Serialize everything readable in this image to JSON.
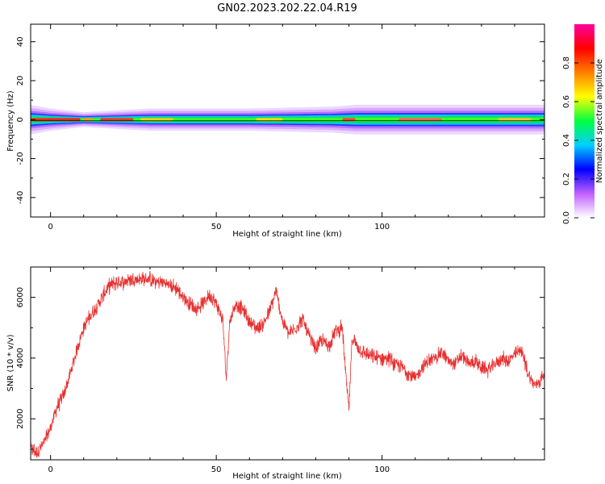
{
  "figure": {
    "title": "GN02.2023.202.22.04.R19"
  },
  "chart_data": [
    {
      "type": "heatmap",
      "xlabel": "Height of straight line (km)",
      "ylabel": "Frequency (Hz)",
      "xlim": [
        -6,
        149
      ],
      "ylim": [
        -50,
        49
      ],
      "xticks": [
        0,
        50,
        100
      ],
      "yticks": [
        -40,
        -20,
        0,
        20,
        40
      ],
      "ytick_labels": [
        "-40",
        "-20",
        "0",
        "20",
        "40"
      ],
      "grid": false,
      "description_band": {
        "center_frequency": 0,
        "half_width_by_height": [
          [
            -6,
            4
          ],
          [
            0,
            3
          ],
          [
            10,
            2
          ],
          [
            30,
            3
          ],
          [
            60,
            3
          ],
          [
            85,
            3.5
          ],
          [
            92,
            4
          ],
          [
            120,
            4
          ],
          [
            149,
            4
          ]
        ]
      },
      "colorbar": {
        "label": "Normalized spectral amplitude",
        "range": [
          0,
          1
        ],
        "ticks": [
          0.0,
          0.2,
          0.4,
          0.6,
          0.8
        ],
        "tick_labels": [
          "0.0",
          "0.2",
          "0.4",
          "0.6",
          "0.8"
        ],
        "colors": [
          "#ffffff",
          "#c060ff",
          "#0000ff",
          "#00d0ff",
          "#00ff40",
          "#ffff00",
          "#ff8000",
          "#ff0000",
          "#ff00a0"
        ]
      }
    },
    {
      "type": "line",
      "xlabel": "Height of straight line (km)",
      "ylabel": "SNR (10 * v/v)",
      "xlim": [
        -6,
        149
      ],
      "ylim": [
        650,
        7000
      ],
      "xticks": [
        0,
        50,
        100
      ],
      "yticks": [
        2000,
        4000,
        6000
      ],
      "ytick_labels": [
        "2000",
        "4000",
        "6000"
      ],
      "grid": false,
      "series": [
        {
          "color": "#e83030",
          "x": [
            -6,
            -4,
            -2,
            0,
            2,
            4,
            6,
            8,
            10,
            12,
            14,
            16,
            18,
            20,
            22,
            24,
            26,
            28,
            30,
            32,
            34,
            36,
            38,
            40,
            42,
            44,
            46,
            48,
            50,
            52,
            53,
            54,
            56,
            58,
            60,
            62,
            64,
            66,
            68,
            70,
            72,
            74,
            76,
            78,
            80,
            82,
            84,
            86,
            88,
            89,
            90,
            91,
            92,
            94,
            96,
            98,
            100,
            102,
            104,
            106,
            108,
            110,
            112,
            114,
            116,
            118,
            120,
            122,
            124,
            126,
            128,
            130,
            132,
            134,
            136,
            138,
            140,
            142,
            144,
            146,
            148,
            149
          ],
          "y": [
            1000,
            900,
            1200,
            1700,
            2400,
            2800,
            3500,
            4300,
            5000,
            5400,
            5700,
            6100,
            6400,
            6500,
            6500,
            6600,
            6600,
            6600,
            6600,
            6500,
            6500,
            6400,
            6300,
            6000,
            5800,
            5600,
            5800,
            6100,
            5800,
            5200,
            3300,
            5200,
            5800,
            5600,
            5200,
            5000,
            5100,
            5500,
            6200,
            5200,
            4800,
            5000,
            5300,
            4700,
            4300,
            4600,
            4400,
            4900,
            5000,
            3500,
            2300,
            4700,
            4500,
            4200,
            4100,
            4000,
            4000,
            4000,
            3800,
            3700,
            3500,
            3300,
            3700,
            3900,
            4000,
            4200,
            3900,
            3800,
            4100,
            3800,
            3900,
            3700,
            3600,
            3800,
            4000,
            3900,
            4100,
            4300,
            3500,
            3100,
            3300,
            3500
          ]
        }
      ]
    }
  ]
}
